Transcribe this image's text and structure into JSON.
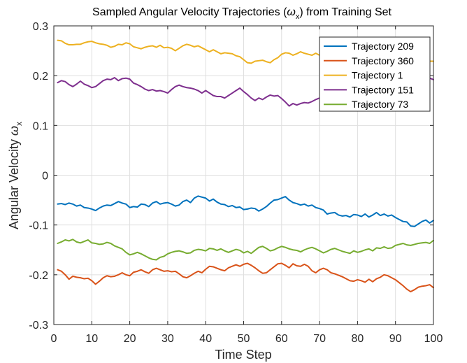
{
  "chart_data": {
    "type": "line",
    "title_prefix": "Sampled Angular Velocity Trajectories (",
    "title_symbol": "ω",
    "title_subscript": "x",
    "title_suffix": ") from Training Set",
    "xlabel": "Time Step",
    "ylabel_prefix": "Angular Velocity ",
    "ylabel_symbol": "ω",
    "ylabel_subscript": "x",
    "xlim": [
      0,
      100
    ],
    "ylim": [
      -0.3,
      0.3
    ],
    "xticks": [
      0,
      10,
      20,
      30,
      40,
      50,
      60,
      70,
      80,
      90,
      100
    ],
    "yticks": [
      -0.3,
      -0.2,
      -0.1,
      0,
      0.1,
      0.2,
      0.3
    ],
    "ytick_labels": [
      "-0.3",
      "-0.2",
      "-0.1",
      "0",
      "0.1",
      "0.2",
      "0.3"
    ],
    "grid": true,
    "legend_position": "top-right",
    "x": [
      1,
      2,
      3,
      4,
      5,
      6,
      7,
      8,
      9,
      10,
      11,
      12,
      13,
      14,
      15,
      16,
      17,
      18,
      19,
      20,
      21,
      22,
      23,
      24,
      25,
      26,
      27,
      28,
      29,
      30,
      31,
      32,
      33,
      34,
      35,
      36,
      37,
      38,
      39,
      40,
      41,
      42,
      43,
      44,
      45,
      46,
      47,
      48,
      49,
      50,
      51,
      52,
      53,
      54,
      55,
      56,
      57,
      58,
      59,
      60,
      61,
      62,
      63,
      64,
      65,
      66,
      67,
      68,
      69,
      70,
      71,
      72,
      73,
      74,
      75,
      76,
      77,
      78,
      79,
      80,
      81,
      82,
      83,
      84,
      85,
      86,
      87,
      88,
      89,
      90,
      91,
      92,
      93,
      94,
      95,
      96,
      97,
      98,
      99,
      100
    ],
    "series": [
      {
        "name": "Trajectory 209",
        "color": "#0072BD",
        "values": [
          -0.058,
          -0.057,
          -0.059,
          -0.056,
          -0.058,
          -0.062,
          -0.06,
          -0.065,
          -0.066,
          -0.068,
          -0.071,
          -0.066,
          -0.062,
          -0.06,
          -0.061,
          -0.057,
          -0.053,
          -0.056,
          -0.058,
          -0.065,
          -0.063,
          -0.064,
          -0.058,
          -0.059,
          -0.063,
          -0.056,
          -0.053,
          -0.058,
          -0.056,
          -0.055,
          -0.058,
          -0.062,
          -0.06,
          -0.053,
          -0.05,
          -0.055,
          -0.046,
          -0.042,
          -0.044,
          -0.046,
          -0.052,
          -0.048,
          -0.054,
          -0.058,
          -0.059,
          -0.063,
          -0.061,
          -0.065,
          -0.064,
          -0.069,
          -0.068,
          -0.066,
          -0.067,
          -0.072,
          -0.068,
          -0.063,
          -0.056,
          -0.05,
          -0.049,
          -0.046,
          -0.043,
          -0.05,
          -0.055,
          -0.057,
          -0.06,
          -0.058,
          -0.062,
          -0.06,
          -0.065,
          -0.067,
          -0.07,
          -0.078,
          -0.076,
          -0.075,
          -0.08,
          -0.082,
          -0.081,
          -0.084,
          -0.079,
          -0.08,
          -0.083,
          -0.078,
          -0.084,
          -0.08,
          -0.075,
          -0.081,
          -0.078,
          -0.082,
          -0.08,
          -0.085,
          -0.089,
          -0.093,
          -0.094,
          -0.102,
          -0.103,
          -0.098,
          -0.093,
          -0.09,
          -0.096,
          -0.091
        ]
      },
      {
        "name": "Trajectory 360",
        "color": "#D95319",
        "values": [
          -0.19,
          -0.193,
          -0.2,
          -0.209,
          -0.203,
          -0.205,
          -0.206,
          -0.208,
          -0.207,
          -0.212,
          -0.219,
          -0.213,
          -0.206,
          -0.202,
          -0.204,
          -0.203,
          -0.2,
          -0.196,
          -0.2,
          -0.202,
          -0.195,
          -0.193,
          -0.19,
          -0.194,
          -0.197,
          -0.19,
          -0.187,
          -0.19,
          -0.193,
          -0.192,
          -0.194,
          -0.193,
          -0.198,
          -0.204,
          -0.206,
          -0.202,
          -0.197,
          -0.193,
          -0.196,
          -0.189,
          -0.183,
          -0.184,
          -0.187,
          -0.19,
          -0.192,
          -0.186,
          -0.183,
          -0.18,
          -0.183,
          -0.179,
          -0.177,
          -0.181,
          -0.186,
          -0.192,
          -0.197,
          -0.196,
          -0.19,
          -0.184,
          -0.178,
          -0.177,
          -0.181,
          -0.186,
          -0.178,
          -0.182,
          -0.183,
          -0.179,
          -0.183,
          -0.192,
          -0.196,
          -0.19,
          -0.187,
          -0.19,
          -0.196,
          -0.198,
          -0.201,
          -0.204,
          -0.208,
          -0.212,
          -0.213,
          -0.21,
          -0.212,
          -0.215,
          -0.209,
          -0.214,
          -0.208,
          -0.205,
          -0.2,
          -0.202,
          -0.206,
          -0.21,
          -0.216,
          -0.222,
          -0.229,
          -0.234,
          -0.23,
          -0.225,
          -0.223,
          -0.222,
          -0.22,
          -0.226
        ]
      },
      {
        "name": "Trajectory 1",
        "color": "#EDB120",
        "values": [
          0.271,
          0.27,
          0.265,
          0.262,
          0.262,
          0.263,
          0.263,
          0.266,
          0.268,
          0.269,
          0.266,
          0.264,
          0.263,
          0.261,
          0.257,
          0.259,
          0.263,
          0.262,
          0.266,
          0.264,
          0.258,
          0.256,
          0.254,
          0.257,
          0.259,
          0.26,
          0.257,
          0.261,
          0.256,
          0.257,
          0.255,
          0.25,
          0.255,
          0.26,
          0.263,
          0.261,
          0.258,
          0.26,
          0.256,
          0.252,
          0.248,
          0.252,
          0.248,
          0.244,
          0.246,
          0.245,
          0.244,
          0.24,
          0.238,
          0.232,
          0.226,
          0.225,
          0.229,
          0.23,
          0.231,
          0.228,
          0.226,
          0.232,
          0.236,
          0.243,
          0.246,
          0.245,
          0.241,
          0.244,
          0.248,
          0.245,
          0.243,
          0.241,
          0.245,
          0.241,
          0.24,
          0.237,
          0.236,
          0.24,
          0.235,
          0.236,
          0.237,
          0.236,
          0.234,
          0.236,
          0.232,
          0.228,
          0.225,
          0.223,
          0.224,
          0.226,
          0.229,
          0.233,
          0.234,
          0.236,
          0.238,
          0.242,
          0.241,
          0.241,
          0.237,
          0.234,
          0.231,
          0.229,
          0.229,
          0.229
        ]
      },
      {
        "name": "Trajectory 151",
        "color": "#7E2F8E",
        "values": [
          0.186,
          0.19,
          0.188,
          0.182,
          0.178,
          0.183,
          0.189,
          0.183,
          0.18,
          0.176,
          0.178,
          0.184,
          0.19,
          0.193,
          0.192,
          0.196,
          0.19,
          0.194,
          0.195,
          0.193,
          0.185,
          0.182,
          0.178,
          0.173,
          0.17,
          0.172,
          0.169,
          0.17,
          0.168,
          0.165,
          0.172,
          0.178,
          0.181,
          0.178,
          0.176,
          0.175,
          0.173,
          0.17,
          0.165,
          0.17,
          0.165,
          0.16,
          0.158,
          0.158,
          0.155,
          0.16,
          0.165,
          0.17,
          0.175,
          0.168,
          0.162,
          0.155,
          0.15,
          0.155,
          0.152,
          0.157,
          0.161,
          0.159,
          0.16,
          0.154,
          0.147,
          0.139,
          0.144,
          0.141,
          0.144,
          0.146,
          0.145,
          0.148,
          0.152,
          0.155,
          0.153,
          0.151,
          0.155,
          0.16,
          0.162,
          0.164,
          0.163,
          0.161,
          0.166,
          0.171,
          0.174,
          0.176,
          0.177,
          0.179,
          0.178,
          0.181,
          0.184,
          0.185,
          0.188,
          0.186,
          0.19,
          0.193,
          0.195,
          0.197,
          0.196,
          0.198,
          0.2,
          0.199,
          0.195,
          0.192
        ]
      },
      {
        "name": "Trajectory 73",
        "color": "#77AC30",
        "values": [
          -0.137,
          -0.134,
          -0.13,
          -0.132,
          -0.129,
          -0.134,
          -0.136,
          -0.133,
          -0.13,
          -0.136,
          -0.137,
          -0.139,
          -0.138,
          -0.135,
          -0.137,
          -0.142,
          -0.145,
          -0.148,
          -0.155,
          -0.16,
          -0.158,
          -0.155,
          -0.158,
          -0.162,
          -0.166,
          -0.169,
          -0.17,
          -0.165,
          -0.163,
          -0.158,
          -0.155,
          -0.153,
          -0.152,
          -0.154,
          -0.157,
          -0.156,
          -0.151,
          -0.149,
          -0.15,
          -0.152,
          -0.147,
          -0.148,
          -0.151,
          -0.148,
          -0.152,
          -0.155,
          -0.152,
          -0.149,
          -0.151,
          -0.156,
          -0.153,
          -0.157,
          -0.151,
          -0.145,
          -0.143,
          -0.147,
          -0.152,
          -0.15,
          -0.146,
          -0.143,
          -0.145,
          -0.148,
          -0.15,
          -0.151,
          -0.154,
          -0.15,
          -0.147,
          -0.145,
          -0.148,
          -0.152,
          -0.156,
          -0.153,
          -0.149,
          -0.147,
          -0.15,
          -0.153,
          -0.155,
          -0.157,
          -0.152,
          -0.155,
          -0.153,
          -0.15,
          -0.148,
          -0.152,
          -0.146,
          -0.147,
          -0.144,
          -0.147,
          -0.146,
          -0.141,
          -0.139,
          -0.137,
          -0.14,
          -0.141,
          -0.139,
          -0.137,
          -0.136,
          -0.135,
          -0.137,
          -0.131
        ]
      }
    ]
  }
}
